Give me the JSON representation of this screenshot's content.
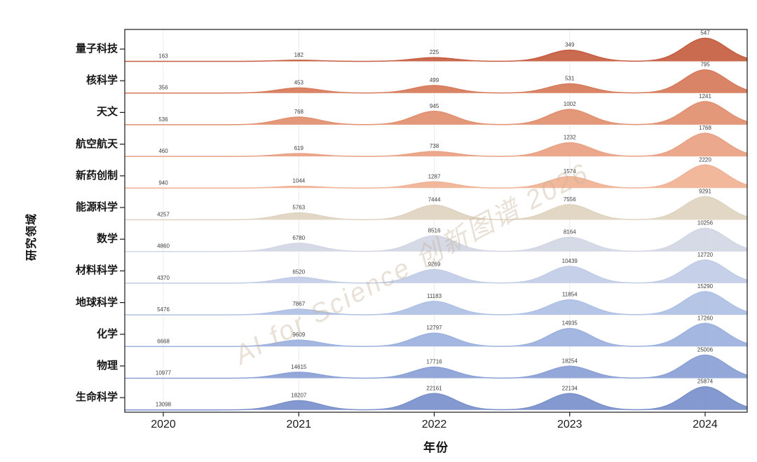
{
  "figure": {
    "x_axis_label": "年份",
    "y_axis_label": "研究领域",
    "watermark": "AI for Science 创新图谱 2026",
    "x_tick_labels": [
      "2020",
      "2021",
      "2022",
      "2023",
      "2024"
    ]
  },
  "chart_data": {
    "type": "area",
    "variant": "ridgeline",
    "title": "",
    "xlabel": "年份",
    "ylabel": "研究领域",
    "x": [
      2020,
      2021,
      2022,
      2023,
      2024
    ],
    "legend_position": "none",
    "grid": "faint vertical gridline at each year",
    "value_labels": "every peak labeled with its count",
    "normalization": "per-row min-max bell heights",
    "row_order_top_to_bottom": true,
    "series": [
      {
        "id": "quantum-technology",
        "name": "量子科技",
        "color": "#c65d40",
        "values": [
          163,
          182,
          225,
          349,
          547
        ]
      },
      {
        "id": "nuclear-science",
        "name": "核科学",
        "color": "#d77a5a",
        "values": [
          356,
          453,
          499,
          531,
          795
        ]
      },
      {
        "id": "astronomy",
        "name": "天文",
        "color": "#e18f6f",
        "values": [
          536,
          768,
          945,
          1002,
          1241
        ]
      },
      {
        "id": "aerospace",
        "name": "航空航天",
        "color": "#e9a183",
        "values": [
          460,
          619,
          738,
          1232,
          1768
        ]
      },
      {
        "id": "new-drug-development",
        "name": "新药创制",
        "color": "#f0b294",
        "values": [
          940,
          1044,
          1287,
          1574,
          2220
        ]
      },
      {
        "id": "energy-science",
        "name": "能源科学",
        "color": "#dfd3c0",
        "values": [
          4257,
          5763,
          7444,
          7556,
          9291
        ]
      },
      {
        "id": "mathematics",
        "name": "数学",
        "color": "#d2d6e4",
        "values": [
          4860,
          6780,
          8516,
          8164,
          10256
        ]
      },
      {
        "id": "materials-science",
        "name": "材料科学",
        "color": "#c1cce6",
        "values": [
          4370,
          6520,
          9269,
          10439,
          12720
        ]
      },
      {
        "id": "earth-science",
        "name": "地球科学",
        "color": "#aec0e4",
        "values": [
          5476,
          7867,
          11183,
          11854,
          15290
        ]
      },
      {
        "id": "chemistry",
        "name": "化学",
        "color": "#9cb1de",
        "values": [
          6668,
          9609,
          12797,
          14935,
          17260
        ]
      },
      {
        "id": "physics",
        "name": "物理",
        "color": "#8ba0d6",
        "values": [
          10977,
          14615,
          17716,
          18254,
          25006
        ]
      },
      {
        "id": "life-science",
        "name": "生命科学",
        "color": "#7a90cb",
        "values": [
          13098,
          18207,
          22161,
          22134,
          25874
        ]
      }
    ],
    "style": {
      "value_label_color": "#3f3f3f",
      "spine_color": "#1a1a1a",
      "gridline_color": "#ececec",
      "background": "#ffffff"
    }
  }
}
